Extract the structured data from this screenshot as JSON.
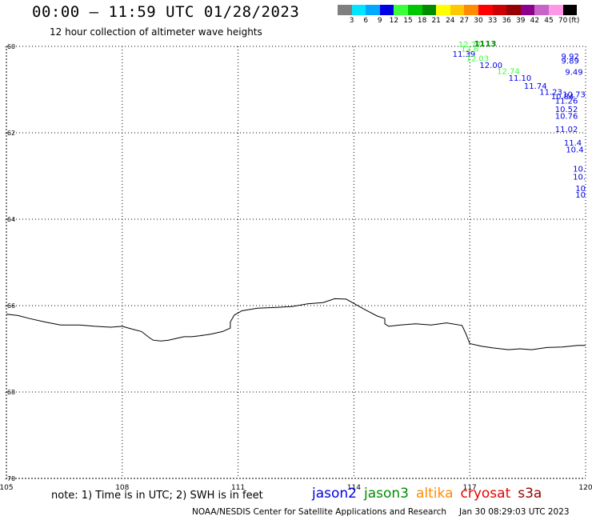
{
  "header": {
    "title": "00:00 – 11:59 UTC 01/28/2023",
    "subtitle": "12 hour collection of altimeter wave heights"
  },
  "legend": {
    "colors": [
      "#7f7f7f",
      "#00e5ff",
      "#00a8ff",
      "#0000e6",
      "#3cff3c",
      "#00c800",
      "#008c00",
      "#ffff00",
      "#ffc800",
      "#ff8c00",
      "#ff0000",
      "#cc0000",
      "#960000",
      "#8c008c",
      "#c864c8",
      "#ff96e6",
      "#000000"
    ],
    "ticks": [
      "3",
      "6",
      "9",
      "12",
      "15",
      "18",
      "21",
      "24",
      "27",
      "30",
      "33",
      "36",
      "39",
      "42",
      "45",
      "70",
      "(ft)"
    ]
  },
  "map": {
    "lon_range": [
      105,
      120
    ],
    "lat_range": [
      -70,
      -60
    ],
    "lon_labels": [
      "105",
      "108",
      "111",
      "114",
      "117",
      "120"
    ],
    "lat_labels": [
      "-60",
      "-62",
      "-64",
      "-66",
      "-68",
      "-70"
    ],
    "coastline": [
      [
        105.0,
        -66.2
      ],
      [
        105.3,
        -66.23
      ],
      [
        105.6,
        -66.3
      ],
      [
        106.0,
        -66.38
      ],
      [
        106.4,
        -66.45
      ],
      [
        106.9,
        -66.45
      ],
      [
        107.3,
        -66.48
      ],
      [
        107.7,
        -66.5
      ],
      [
        108.0,
        -66.48
      ],
      [
        108.2,
        -66.53
      ],
      [
        108.5,
        -66.6
      ],
      [
        108.7,
        -66.74
      ],
      [
        108.8,
        -66.8
      ],
      [
        109.0,
        -66.82
      ],
      [
        109.2,
        -66.8
      ],
      [
        109.4,
        -66.76
      ],
      [
        109.6,
        -66.72
      ],
      [
        109.8,
        -66.72
      ],
      [
        110.0,
        -66.7
      ],
      [
        110.3,
        -66.66
      ],
      [
        110.6,
        -66.6
      ],
      [
        110.8,
        -66.52
      ],
      [
        110.8,
        -66.38
      ],
      [
        110.9,
        -66.22
      ],
      [
        111.1,
        -66.12
      ],
      [
        111.5,
        -66.06
      ],
      [
        112.0,
        -66.04
      ],
      [
        112.4,
        -66.02
      ],
      [
        112.8,
        -65.96
      ],
      [
        113.2,
        -65.93
      ],
      [
        113.5,
        -65.84
      ],
      [
        113.8,
        -65.85
      ],
      [
        114.0,
        -65.95
      ],
      [
        114.3,
        -66.1
      ],
      [
        114.6,
        -66.24
      ],
      [
        114.8,
        -66.3
      ],
      [
        114.8,
        -66.42
      ],
      [
        114.9,
        -66.48
      ],
      [
        115.2,
        -66.45
      ],
      [
        115.6,
        -66.42
      ],
      [
        116.0,
        -66.45
      ],
      [
        116.4,
        -66.4
      ],
      [
        116.8,
        -66.46
      ],
      [
        116.9,
        -66.65
      ],
      [
        117.0,
        -66.88
      ],
      [
        117.3,
        -66.94
      ],
      [
        117.6,
        -66.98
      ],
      [
        118.0,
        -67.02
      ],
      [
        118.3,
        -67.0
      ],
      [
        118.6,
        -67.02
      ],
      [
        119.0,
        -66.97
      ],
      [
        119.4,
        -66.96
      ],
      [
        119.8,
        -66.92
      ],
      [
        120.0,
        -66.92
      ]
    ],
    "observations": [
      {
        "lon": 117.0,
        "lat": -60.02,
        "text": "12.77",
        "color": "#3cff3c"
      },
      {
        "lon": 117.0,
        "lat": -60.12,
        "text": "12.6",
        "color": "#3cff3c"
      },
      {
        "lon": 117.4,
        "lat": -60.0,
        "text": "1113",
        "color": "#008c00",
        "weight": "bold"
      },
      {
        "lon": 116.85,
        "lat": -60.24,
        "text": "11.39",
        "color": "#0000e6"
      },
      {
        "lon": 117.2,
        "lat": -60.34,
        "text": "12.03",
        "color": "#3cff3c"
      },
      {
        "lon": 117.55,
        "lat": -60.5,
        "text": "12.00",
        "color": "#0000e6"
      },
      {
        "lon": 118.0,
        "lat": -60.64,
        "text": "12.74",
        "color": "#3cff3c"
      },
      {
        "lon": 118.3,
        "lat": -60.8,
        "text": "11.10",
        "color": "#0000e6"
      },
      {
        "lon": 118.7,
        "lat": -60.98,
        "text": "11.74",
        "color": "#0000e6"
      },
      {
        "lon": 119.1,
        "lat": -61.12,
        "text": "11.23",
        "color": "#0000e6"
      },
      {
        "lon": 119.4,
        "lat": -61.22,
        "text": "10.84",
        "color": "#0000e6"
      },
      {
        "lon": 119.7,
        "lat": -61.18,
        "text": "10.73",
        "color": "#0000e6"
      },
      {
        "lon": 119.8,
        "lat": -61.32,
        "text": "11.26",
        "color": "#0000e6"
      },
      {
        "lon": 119.8,
        "lat": -61.52,
        "text": "10.52",
        "color": "#0000e6"
      },
      {
        "lon": 119.8,
        "lat": -61.68,
        "text": "10.76",
        "color": "#0000e6"
      },
      {
        "lon": 119.6,
        "lat": -60.3,
        "text": "9.92",
        "color": "#0000e6"
      },
      {
        "lon": 119.6,
        "lat": -60.4,
        "text": "9.89",
        "color": "#0000e6"
      },
      {
        "lon": 119.7,
        "lat": -60.66,
        "text": "9.49",
        "color": "#0000e6"
      },
      {
        "lon": 119.8,
        "lat": -61.98,
        "text": "11.02",
        "color": "#0000e6"
      },
      {
        "lon": 119.9,
        "lat": -62.3,
        "text": "11.4",
        "color": "#0000e6"
      },
      {
        "lon": 119.95,
        "lat": -62.45,
        "text": "10.4",
        "color": "#0000e6"
      },
      {
        "lon": 120.0,
        "lat": -62.9,
        "text": "10.",
        "color": "#0000e6"
      },
      {
        "lon": 120.0,
        "lat": -63.08,
        "text": "10.",
        "color": "#0000e6"
      },
      {
        "lon": 120.0,
        "lat": -63.35,
        "text": "10",
        "color": "#0000e6"
      },
      {
        "lon": 120.0,
        "lat": -63.5,
        "text": "10",
        "color": "#0000e6"
      }
    ]
  },
  "bottom": {
    "note": "note: 1) Time is in UTC; 2) SWH is in feet",
    "satellites": [
      {
        "name": "jason2",
        "color": "#0000e6"
      },
      {
        "name": "jason3",
        "color": "#008c00"
      },
      {
        "name": "altika",
        "color": "#ff8c00"
      },
      {
        "name": "cryosat",
        "color": "#e60000"
      },
      {
        "name": "s3a",
        "color": "#960000"
      }
    ],
    "credit": "NOAA/NESDIS Center for Satellite Applications and Research",
    "timestamp": "Jan 30 08:29:03 UTC 2023"
  }
}
